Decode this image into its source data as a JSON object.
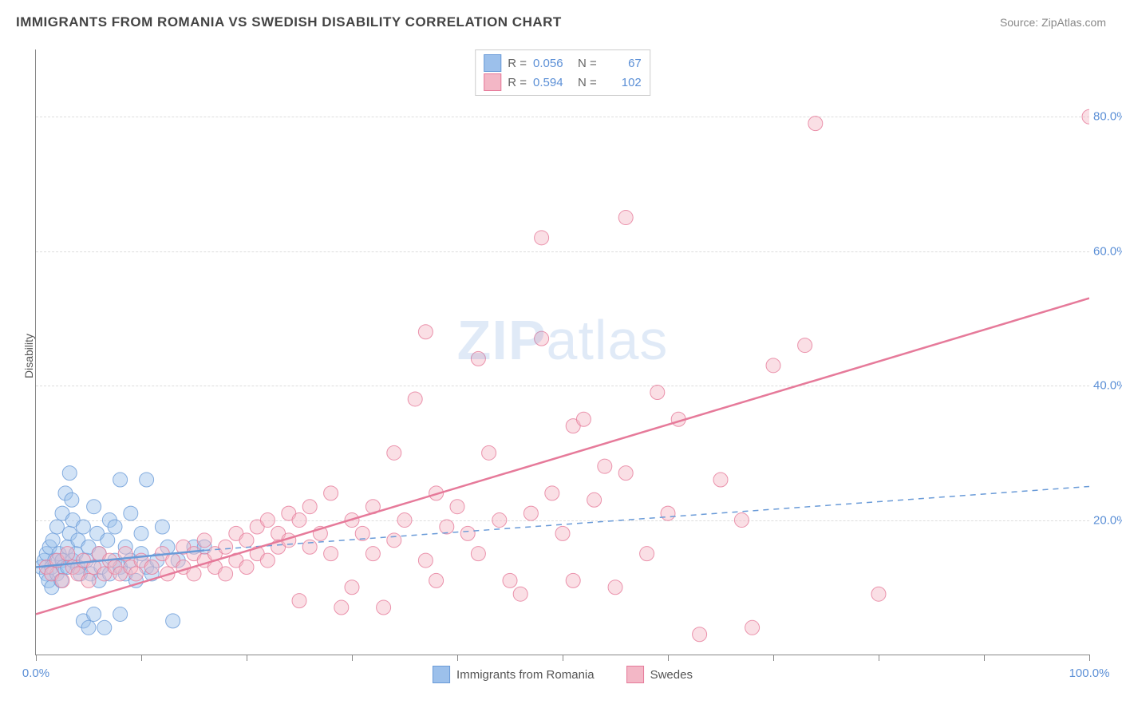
{
  "title": "IMMIGRANTS FROM ROMANIA VS SWEDISH DISABILITY CORRELATION CHART",
  "source_label": "Source: ZipAtlas.com",
  "y_axis_label": "Disability",
  "watermark_a": "ZIP",
  "watermark_b": "atlas",
  "chart": {
    "type": "scatter",
    "xlim": [
      0,
      100
    ],
    "ylim": [
      0,
      90
    ],
    "y_ticks": [
      20,
      40,
      60,
      80
    ],
    "y_tick_labels": [
      "20.0%",
      "40.0%",
      "60.0%",
      "80.0%"
    ],
    "x_ticks": [
      0,
      10,
      20,
      30,
      40,
      50,
      60,
      70,
      80,
      90,
      100
    ],
    "x_tick_labels_sparse": {
      "0": "0.0%",
      "100": "100.0%"
    },
    "grid_color": "#dddddd",
    "background_color": "#ffffff",
    "axis_color": "#888888",
    "marker_radius": 9,
    "marker_opacity": 0.45,
    "marker_stroke_opacity": 0.8,
    "regression_line_width": 2.5,
    "dash_line_width": 1.5,
    "series": [
      {
        "id": "romania",
        "label": "Immigrants from Romania",
        "color_fill": "#9cc0eb",
        "color_stroke": "#6a9bd8",
        "r_value": "0.056",
        "n_value": "67",
        "regression": {
          "x1": 0,
          "y1": 13,
          "x2": 16,
          "y2": 15.5,
          "style": "solid"
        },
        "regression_ext": {
          "x1": 16,
          "y1": 15.5,
          "x2": 100,
          "y2": 25,
          "style": "dashed"
        },
        "points": [
          [
            0.5,
            13
          ],
          [
            0.8,
            14
          ],
          [
            1,
            12
          ],
          [
            1,
            15
          ],
          [
            1.2,
            11
          ],
          [
            1.3,
            16
          ],
          [
            1.5,
            10
          ],
          [
            1.5,
            13
          ],
          [
            1.6,
            17
          ],
          [
            1.8,
            14
          ],
          [
            2,
            12
          ],
          [
            2,
            19
          ],
          [
            2.2,
            15
          ],
          [
            2.4,
            11
          ],
          [
            2.5,
            21
          ],
          [
            2.5,
            14
          ],
          [
            2.6,
            13
          ],
          [
            2.8,
            24
          ],
          [
            3,
            16
          ],
          [
            3,
            13
          ],
          [
            3.2,
            18
          ],
          [
            3.2,
            27
          ],
          [
            3.4,
            23
          ],
          [
            3.5,
            14
          ],
          [
            3.5,
            20
          ],
          [
            3.8,
            15
          ],
          [
            4,
            13
          ],
          [
            4,
            17
          ],
          [
            4.2,
            12
          ],
          [
            4.5,
            19
          ],
          [
            4.5,
            5
          ],
          [
            4.8,
            14
          ],
          [
            5,
            4
          ],
          [
            5,
            16
          ],
          [
            5.2,
            12
          ],
          [
            5.5,
            6
          ],
          [
            5.5,
            22
          ],
          [
            5.8,
            18
          ],
          [
            6,
            11
          ],
          [
            6,
            15
          ],
          [
            6.2,
            13
          ],
          [
            6.5,
            4
          ],
          [
            6.8,
            17
          ],
          [
            7,
            20
          ],
          [
            7,
            12
          ],
          [
            7.5,
            14
          ],
          [
            7.5,
            19
          ],
          [
            8,
            26
          ],
          [
            8,
            13
          ],
          [
            8,
            6
          ],
          [
            8.5,
            16
          ],
          [
            8.5,
            12
          ],
          [
            9,
            21
          ],
          [
            9,
            14
          ],
          [
            9.5,
            11
          ],
          [
            10,
            15
          ],
          [
            10,
            18
          ],
          [
            10.5,
            26
          ],
          [
            10.5,
            13
          ],
          [
            11,
            12
          ],
          [
            11.5,
            14
          ],
          [
            12,
            19
          ],
          [
            12.5,
            16
          ],
          [
            13,
            5
          ],
          [
            13.5,
            14
          ],
          [
            15,
            16
          ],
          [
            16,
            16
          ]
        ]
      },
      {
        "id": "swedes",
        "label": "Swedes",
        "color_fill": "#f3b7c6",
        "color_stroke": "#e67a9a",
        "r_value": "0.594",
        "n_value": "102",
        "regression": {
          "x1": 0,
          "y1": 6,
          "x2": 100,
          "y2": 53,
          "style": "solid"
        },
        "points": [
          [
            1,
            13
          ],
          [
            1.5,
            12
          ],
          [
            2,
            14
          ],
          [
            2.5,
            11
          ],
          [
            3,
            15
          ],
          [
            3.5,
            13
          ],
          [
            4,
            12
          ],
          [
            4.5,
            14
          ],
          [
            5,
            11
          ],
          [
            5.5,
            13
          ],
          [
            6,
            15
          ],
          [
            6.5,
            12
          ],
          [
            7,
            14
          ],
          [
            7.5,
            13
          ],
          [
            8,
            12
          ],
          [
            8.5,
            15
          ],
          [
            9,
            13
          ],
          [
            9.5,
            12
          ],
          [
            10,
            14
          ],
          [
            11,
            13
          ],
          [
            12,
            15
          ],
          [
            12.5,
            12
          ],
          [
            13,
            14
          ],
          [
            14,
            16
          ],
          [
            14,
            13
          ],
          [
            15,
            15
          ],
          [
            15,
            12
          ],
          [
            16,
            17
          ],
          [
            16,
            14
          ],
          [
            17,
            15
          ],
          [
            17,
            13
          ],
          [
            18,
            16
          ],
          [
            18,
            12
          ],
          [
            19,
            18
          ],
          [
            19,
            14
          ],
          [
            20,
            17
          ],
          [
            20,
            13
          ],
          [
            21,
            19
          ],
          [
            21,
            15
          ],
          [
            22,
            20
          ],
          [
            22,
            14
          ],
          [
            23,
            18
          ],
          [
            23,
            16
          ],
          [
            24,
            21
          ],
          [
            24,
            17
          ],
          [
            25,
            20
          ],
          [
            25,
            8
          ],
          [
            26,
            22
          ],
          [
            26,
            16
          ],
          [
            27,
            18
          ],
          [
            28,
            24
          ],
          [
            28,
            15
          ],
          [
            29,
            7
          ],
          [
            30,
            20
          ],
          [
            30,
            10
          ],
          [
            31,
            18
          ],
          [
            32,
            22
          ],
          [
            32,
            15
          ],
          [
            33,
            7
          ],
          [
            34,
            30
          ],
          [
            34,
            17
          ],
          [
            35,
            20
          ],
          [
            36,
            38
          ],
          [
            37,
            48
          ],
          [
            37,
            14
          ],
          [
            38,
            24
          ],
          [
            38,
            11
          ],
          [
            39,
            19
          ],
          [
            40,
            22
          ],
          [
            41,
            18
          ],
          [
            42,
            44
          ],
          [
            42,
            15
          ],
          [
            43,
            30
          ],
          [
            44,
            20
          ],
          [
            45,
            11
          ],
          [
            46,
            9
          ],
          [
            47,
            21
          ],
          [
            48,
            62
          ],
          [
            48,
            47
          ],
          [
            49,
            24
          ],
          [
            50,
            18
          ],
          [
            51,
            34
          ],
          [
            51,
            11
          ],
          [
            52,
            35
          ],
          [
            53,
            23
          ],
          [
            54,
            28
          ],
          [
            55,
            10
          ],
          [
            56,
            65
          ],
          [
            56,
            27
          ],
          [
            58,
            15
          ],
          [
            59,
            39
          ],
          [
            60,
            21
          ],
          [
            61,
            35
          ],
          [
            63,
            3
          ],
          [
            65,
            26
          ],
          [
            67,
            20
          ],
          [
            68,
            4
          ],
          [
            70,
            43
          ],
          [
            73,
            46
          ],
          [
            74,
            79
          ],
          [
            80,
            9
          ],
          [
            100,
            80
          ]
        ]
      }
    ]
  },
  "legend_top": {
    "r_label": "R =",
    "n_label": "N ="
  },
  "legend_bottom": {}
}
